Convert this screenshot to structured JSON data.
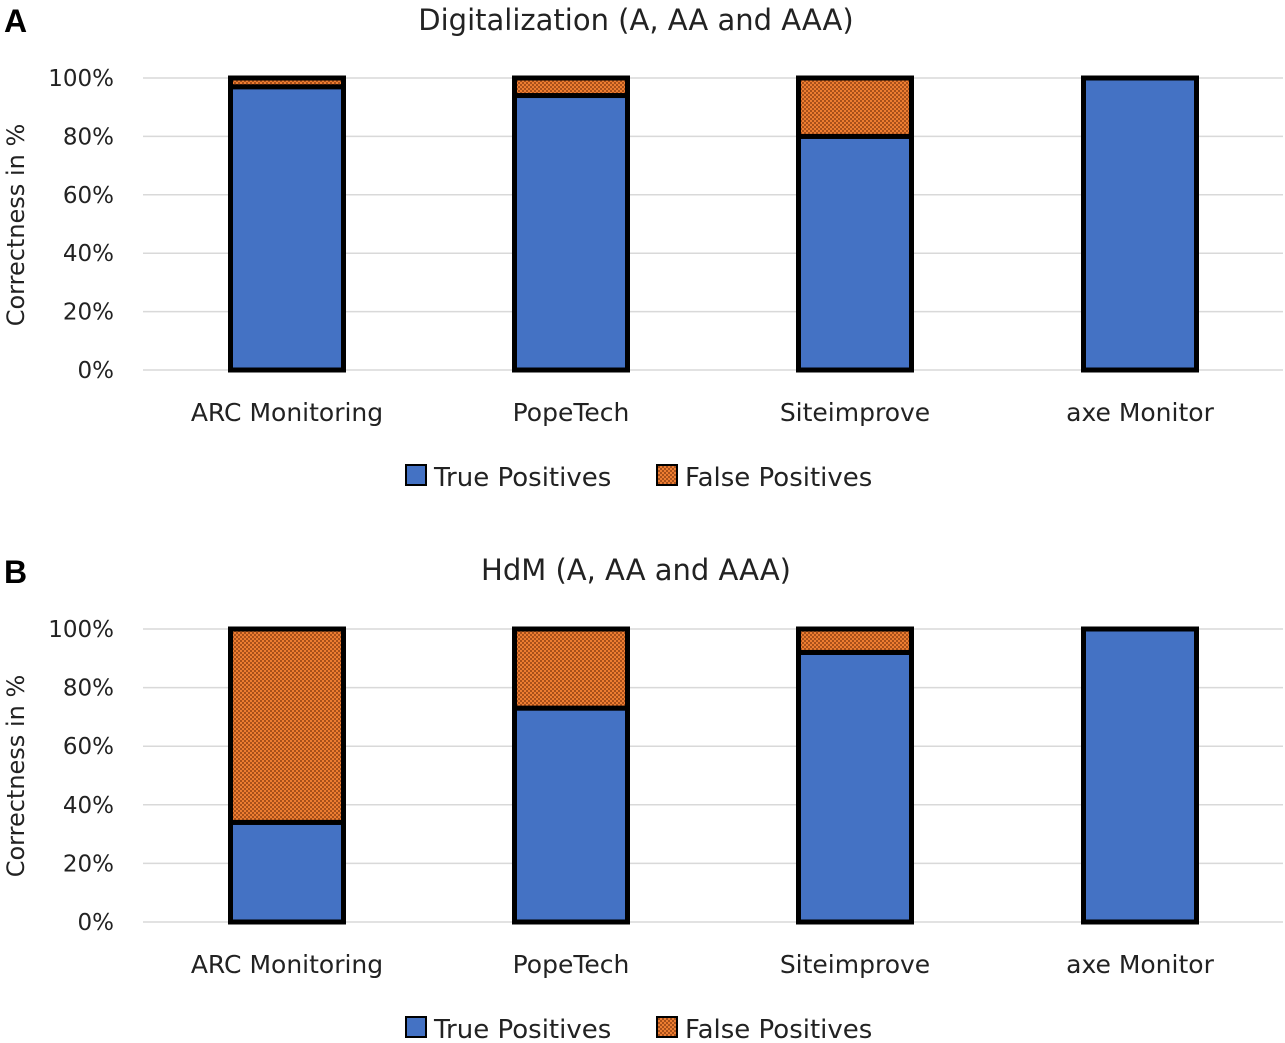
{
  "colors": {
    "true_positives": "#4472c4",
    "false_positives": "#ed7d31",
    "outline": "#000000",
    "gridline": "#d9d9d9"
  },
  "chart_data": [
    {
      "panel_label": "A",
      "type": "bar",
      "stacked": true,
      "title": "Digitalization (A, AA and AAA)",
      "xlabel": "",
      "ylabel": "Correctness in %",
      "ylim": [
        0,
        100
      ],
      "yticks": [
        "0%",
        "20%",
        "40%",
        "60%",
        "80%",
        "100%"
      ],
      "grid": true,
      "legend_position": "bottom",
      "categories": [
        "ARC Monitoring",
        "PopeTech",
        "Siteimprove",
        "axe Monitor"
      ],
      "series": [
        {
          "name": "True Positives",
          "values": [
            97,
            94,
            80,
            100
          ]
        },
        {
          "name": "False Positives",
          "values": [
            3,
            6,
            20,
            0
          ]
        }
      ]
    },
    {
      "panel_label": "B",
      "type": "bar",
      "stacked": true,
      "title": "HdM (A, AA and AAA)",
      "xlabel": "",
      "ylabel": "Correctness in %",
      "ylim": [
        0,
        100
      ],
      "yticks": [
        "0%",
        "20%",
        "40%",
        "60%",
        "80%",
        "100%"
      ],
      "grid": true,
      "legend_position": "bottom",
      "categories": [
        "ARC Monitoring",
        "PopeTech",
        "Siteimprove",
        "axe Monitor"
      ],
      "series": [
        {
          "name": "True Positives",
          "values": [
            34,
            73,
            92,
            100
          ]
        },
        {
          "name": "False Positives",
          "values": [
            66,
            27,
            8,
            0
          ]
        }
      ]
    }
  ]
}
